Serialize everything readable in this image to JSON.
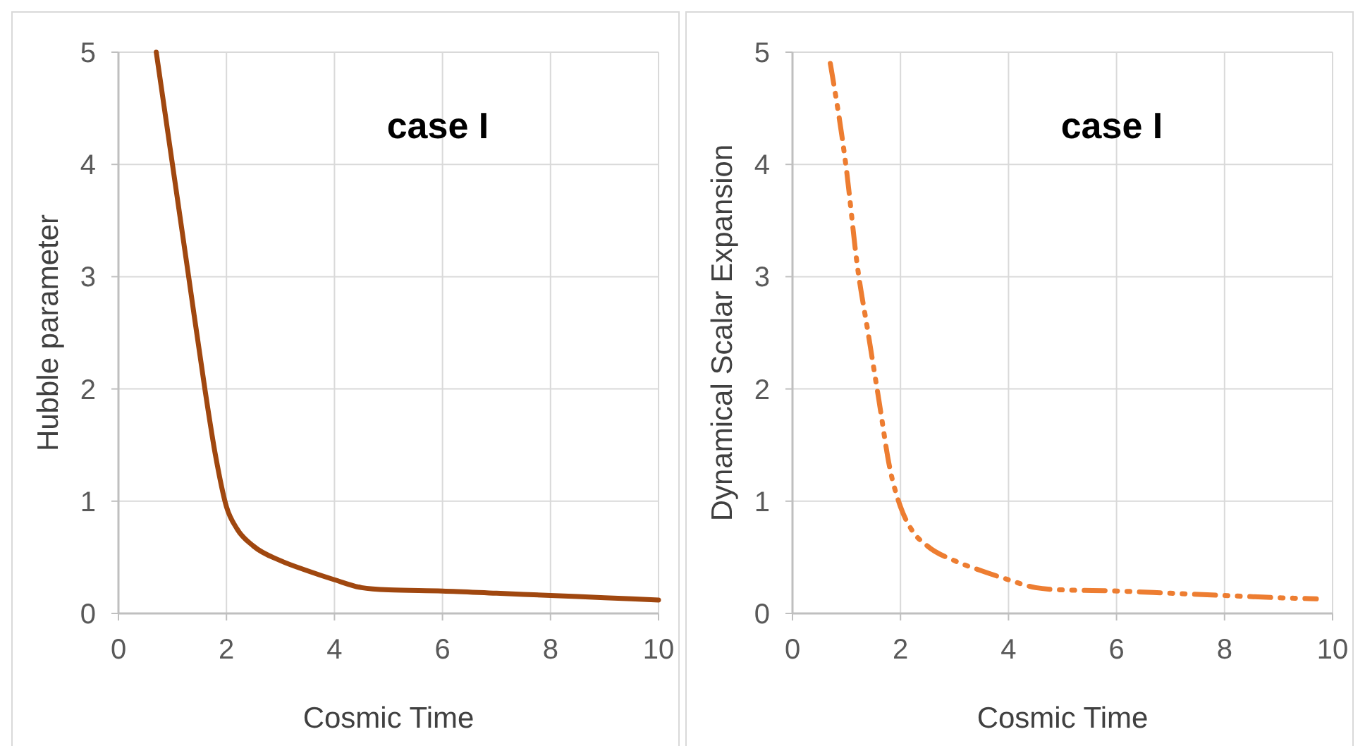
{
  "chart_data": [
    {
      "type": "line",
      "title": "case I",
      "xlabel": "Cosmic Time",
      "ylabel": "Hubble parameter",
      "xlim": [
        0,
        10
      ],
      "ylim": [
        0,
        5
      ],
      "xticks": [
        0,
        2,
        4,
        6,
        8,
        10
      ],
      "yticks": [
        0,
        1,
        2,
        3,
        4,
        5
      ],
      "grid": true,
      "line_style": "solid",
      "series": [
        {
          "color": "#a0470f",
          "x": [
            0.7,
            1,
            1.3,
            1.6,
            1.8,
            2,
            2.2,
            2.5,
            3,
            3.5,
            4,
            4.5,
            5,
            6,
            7,
            8,
            9,
            10
          ],
          "values": [
            5,
            4,
            3,
            2,
            1.4,
            0.95,
            0.75,
            0.6,
            0.47,
            0.38,
            0.3,
            0.23,
            0.21,
            0.2,
            0.18,
            0.16,
            0.14,
            0.12
          ]
        }
      ]
    },
    {
      "type": "line",
      "title": "case I",
      "xlabel": "Cosmic Time",
      "ylabel": "Dynamical Scalar Expansion",
      "xlim": [
        0,
        10
      ],
      "ylim": [
        0,
        5
      ],
      "xticks": [
        0,
        2,
        4,
        6,
        8,
        10
      ],
      "yticks": [
        0,
        1,
        2,
        3,
        4,
        5
      ],
      "grid": true,
      "line_style": "dashed",
      "series": [
        {
          "color": "#ed7d31",
          "x": [
            0.7,
            1,
            1.2,
            1.4,
            1.6,
            1.8,
            2,
            2.2,
            2.5,
            3,
            3.5,
            4,
            4.5,
            5,
            6,
            7,
            8,
            9,
            9.7
          ],
          "values": [
            4.9,
            3.95,
            3.1,
            2.5,
            1.9,
            1.3,
            0.95,
            0.75,
            0.6,
            0.47,
            0.38,
            0.3,
            0.23,
            0.21,
            0.2,
            0.18,
            0.16,
            0.14,
            0.13
          ]
        }
      ]
    }
  ]
}
